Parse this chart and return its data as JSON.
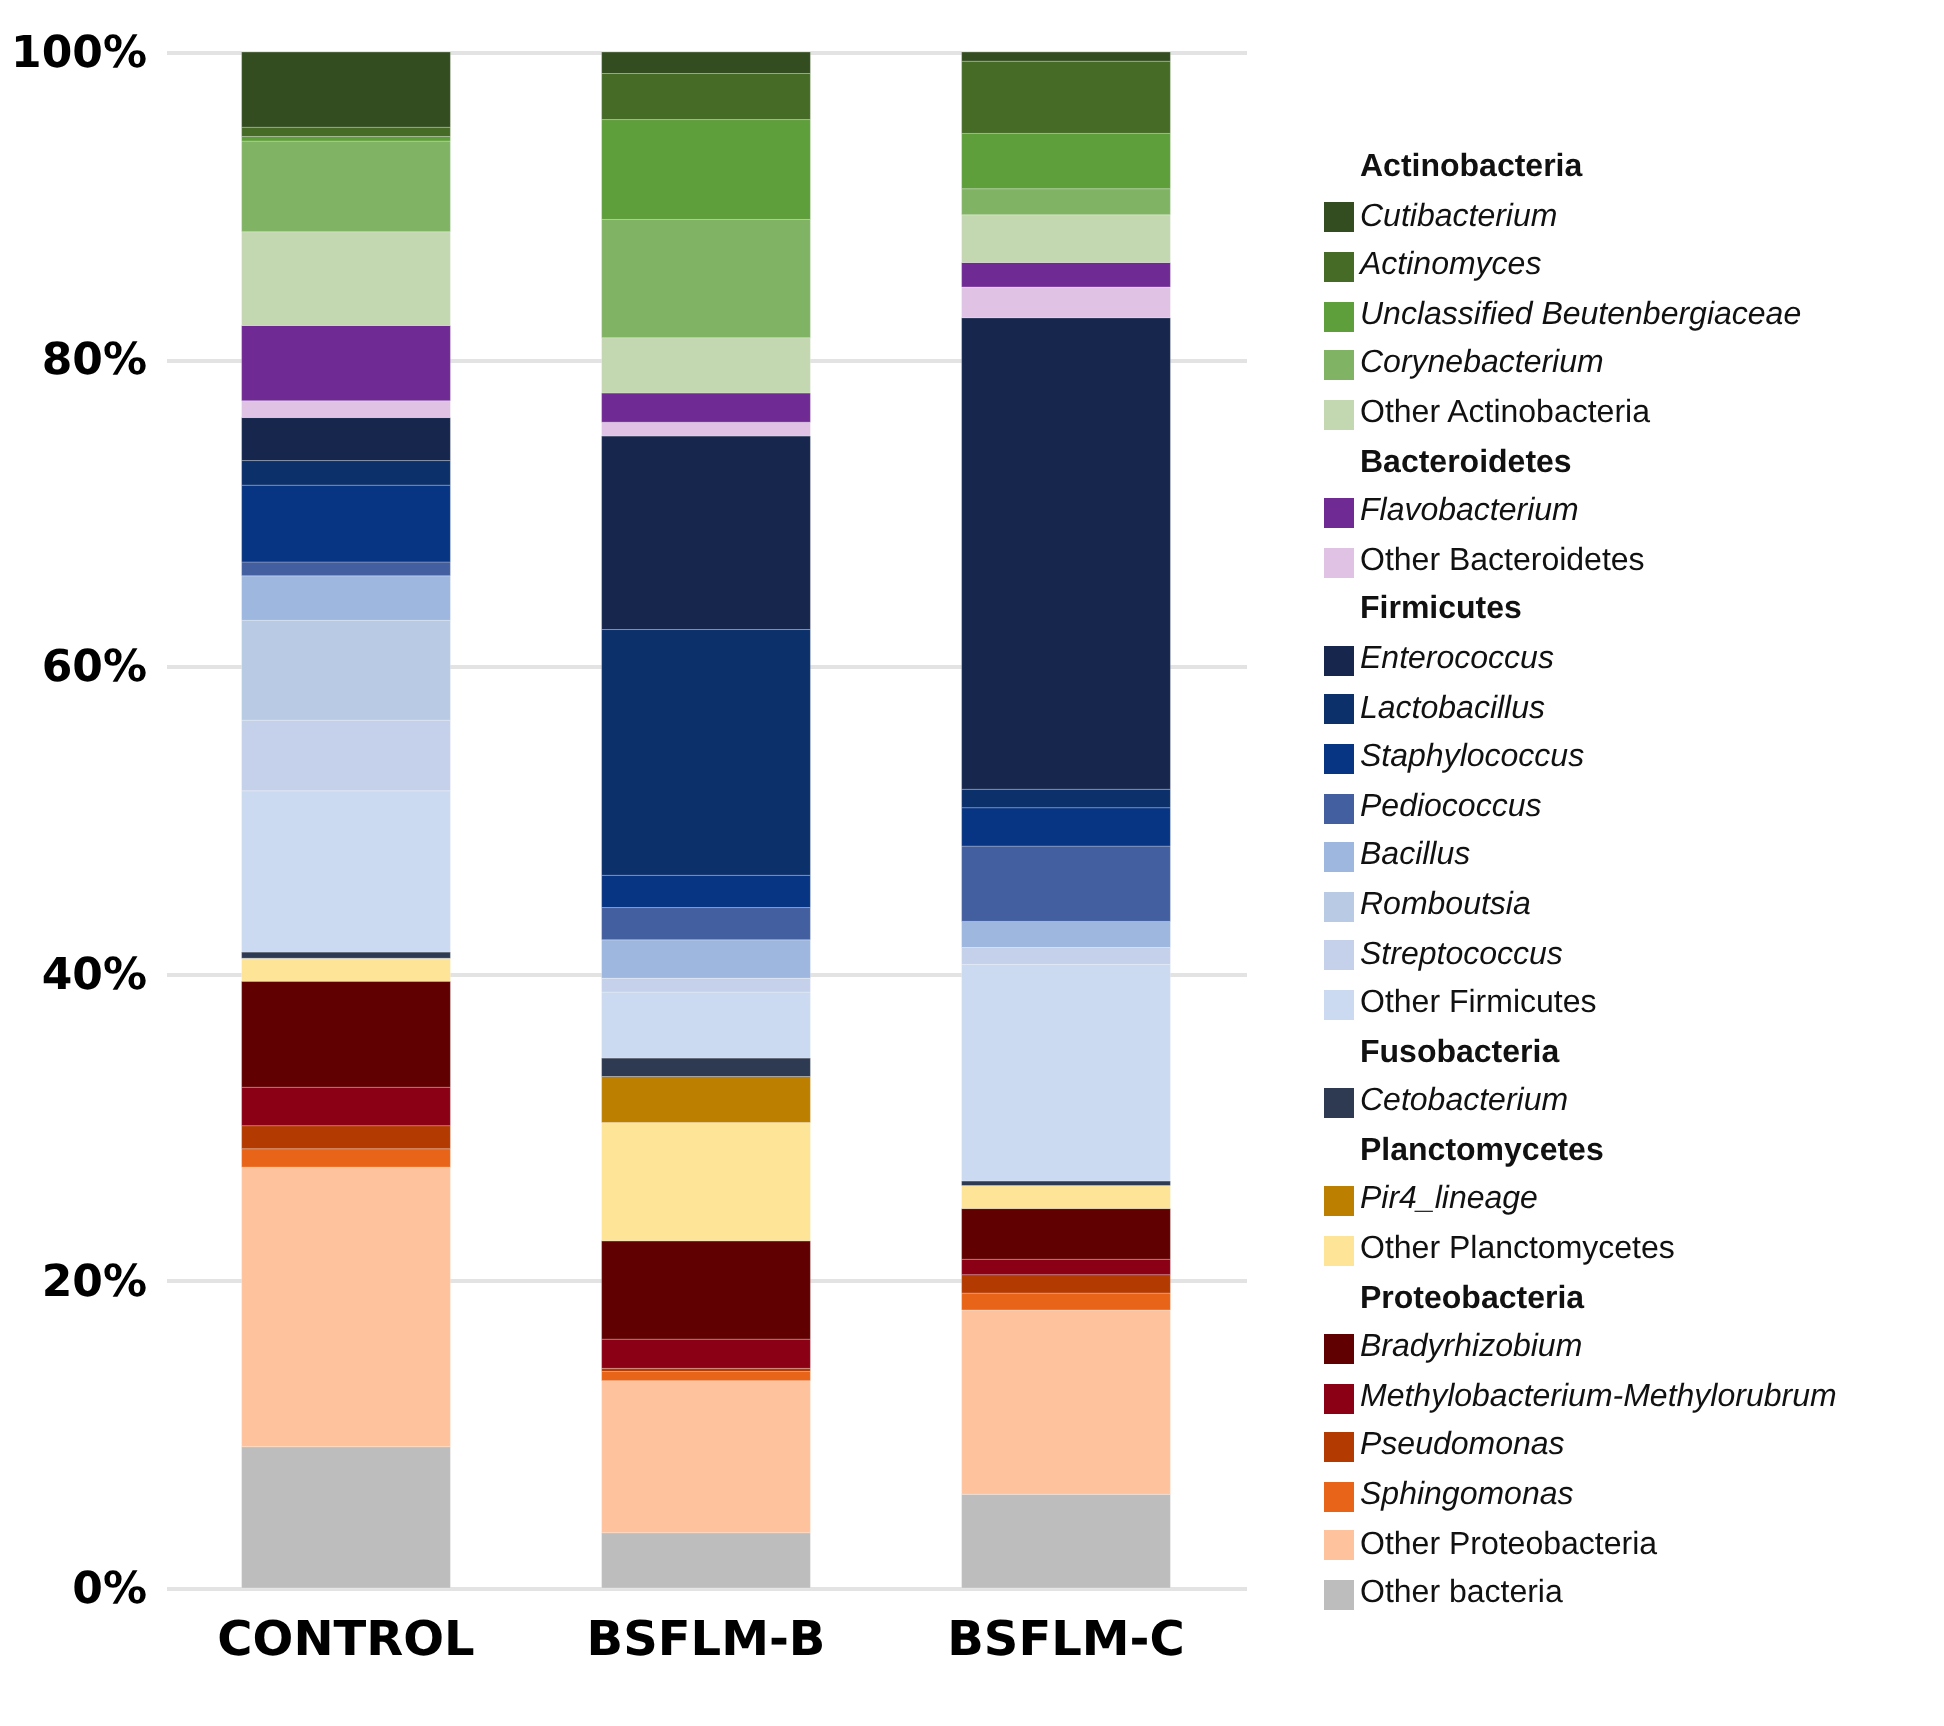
{
  "chart_data": {
    "type": "bar",
    "stacked": true,
    "categories": [
      "CONTROL",
      "BSFLM-B",
      "BSFLM-C"
    ],
    "ylim": [
      0,
      100
    ],
    "yticks": [
      {
        "value": 0,
        "label": "0%"
      },
      {
        "value": 20,
        "label": "20%"
      },
      {
        "value": 40,
        "label": "40%"
      },
      {
        "value": 60,
        "label": "60%"
      },
      {
        "value": 80,
        "label": "80%"
      },
      {
        "value": 100,
        "label": "100%"
      }
    ],
    "grid": "y",
    "legend": "right",
    "annotations": [
      "Actinobacteria",
      "Bacteroidetes",
      "Firmicutes",
      "Fusobacteria",
      "Planctomycetes",
      "Proteobacteria"
    ],
    "series": [
      {
        "name": "Other bacteria",
        "color": "#bdbdbd",
        "values": [
          9.2,
          3.6,
          6.1
        ]
      },
      {
        "name": "Other Proteobacteria",
        "color": "#fec29d",
        "values": [
          18.2,
          9.9,
          12.0
        ]
      },
      {
        "name": "Sphingomonas",
        "color": "#e86418",
        "values": [
          1.2,
          0.6,
          1.1
        ]
      },
      {
        "name": "Pseudomonas",
        "color": "#b33a00",
        "values": [
          1.5,
          0.2,
          1.2
        ]
      },
      {
        "name": "Methylobacterium-Methylorubrum",
        "color": "#8c0016",
        "values": [
          2.5,
          1.9,
          1.0
        ]
      },
      {
        "name": "Bradyrhizobium",
        "color": "#600000",
        "values": [
          6.9,
          6.4,
          3.3
        ]
      },
      {
        "name": "Other Planctomycetes",
        "color": "#fde496",
        "values": [
          1.5,
          7.7,
          1.5
        ]
      },
      {
        "name": "Pir4_lineage",
        "color": "#bd7f00",
        "values": [
          0,
          3.0,
          0
        ]
      },
      {
        "name": "Cetobacterium",
        "color": "#2e3a52",
        "values": [
          0.4,
          1.2,
          0.3
        ]
      },
      {
        "name": "Other Firmicutes",
        "color": "#cbdaf0",
        "values": [
          10.5,
          4.3,
          14.1
        ]
      },
      {
        "name": "Streptococcus",
        "color": "#c5d0ea",
        "values": [
          4.6,
          0.9,
          1.1
        ]
      },
      {
        "name": "Romboutsia",
        "color": "#b9cae4",
        "values": [
          6.5,
          0,
          0
        ]
      },
      {
        "name": "Bacillus",
        "color": "#9db7df",
        "values": [
          2.9,
          2.5,
          1.7
        ]
      },
      {
        "name": "Pediococcus",
        "color": "#435f9f",
        "values": [
          0.9,
          2.1,
          4.9
        ]
      },
      {
        "name": "Staphylococcus",
        "color": "#083583",
        "values": [
          5.0,
          2.1,
          2.5
        ]
      },
      {
        "name": "Lactobacillus",
        "color": "#0c306a",
        "values": [
          1.6,
          16.0,
          1.2
        ]
      },
      {
        "name": "Enterococcus",
        "color": "#16264d",
        "values": [
          2.8,
          12.6,
          30.7
        ]
      },
      {
        "name": "Other Bacteroidetes",
        "color": "#dfc2e4",
        "values": [
          1.1,
          0.9,
          2.0
        ]
      },
      {
        "name": "Flavobacterium",
        "color": "#702a94",
        "values": [
          4.9,
          1.9,
          1.6
        ]
      },
      {
        "name": "Other Actinobacteria",
        "color": "#c3d7b1",
        "values": [
          6.1,
          3.6,
          3.1
        ]
      },
      {
        "name": "Corynebacterium",
        "color": "#81b365",
        "values": [
          5.9,
          7.7,
          1.7
        ]
      },
      {
        "name": "Unclassified Beutenbergiaceae",
        "color": "#5e9e3b",
        "values": [
          0.3,
          6.5,
          3.6
        ]
      },
      {
        "name": "Actinomyces",
        "color": "#466b27",
        "values": [
          0.6,
          3.0,
          4.7
        ]
      },
      {
        "name": "Cutibacterium",
        "color": "#344d20",
        "values": [
          4.9,
          1.4,
          0.6
        ]
      }
    ]
  }
}
